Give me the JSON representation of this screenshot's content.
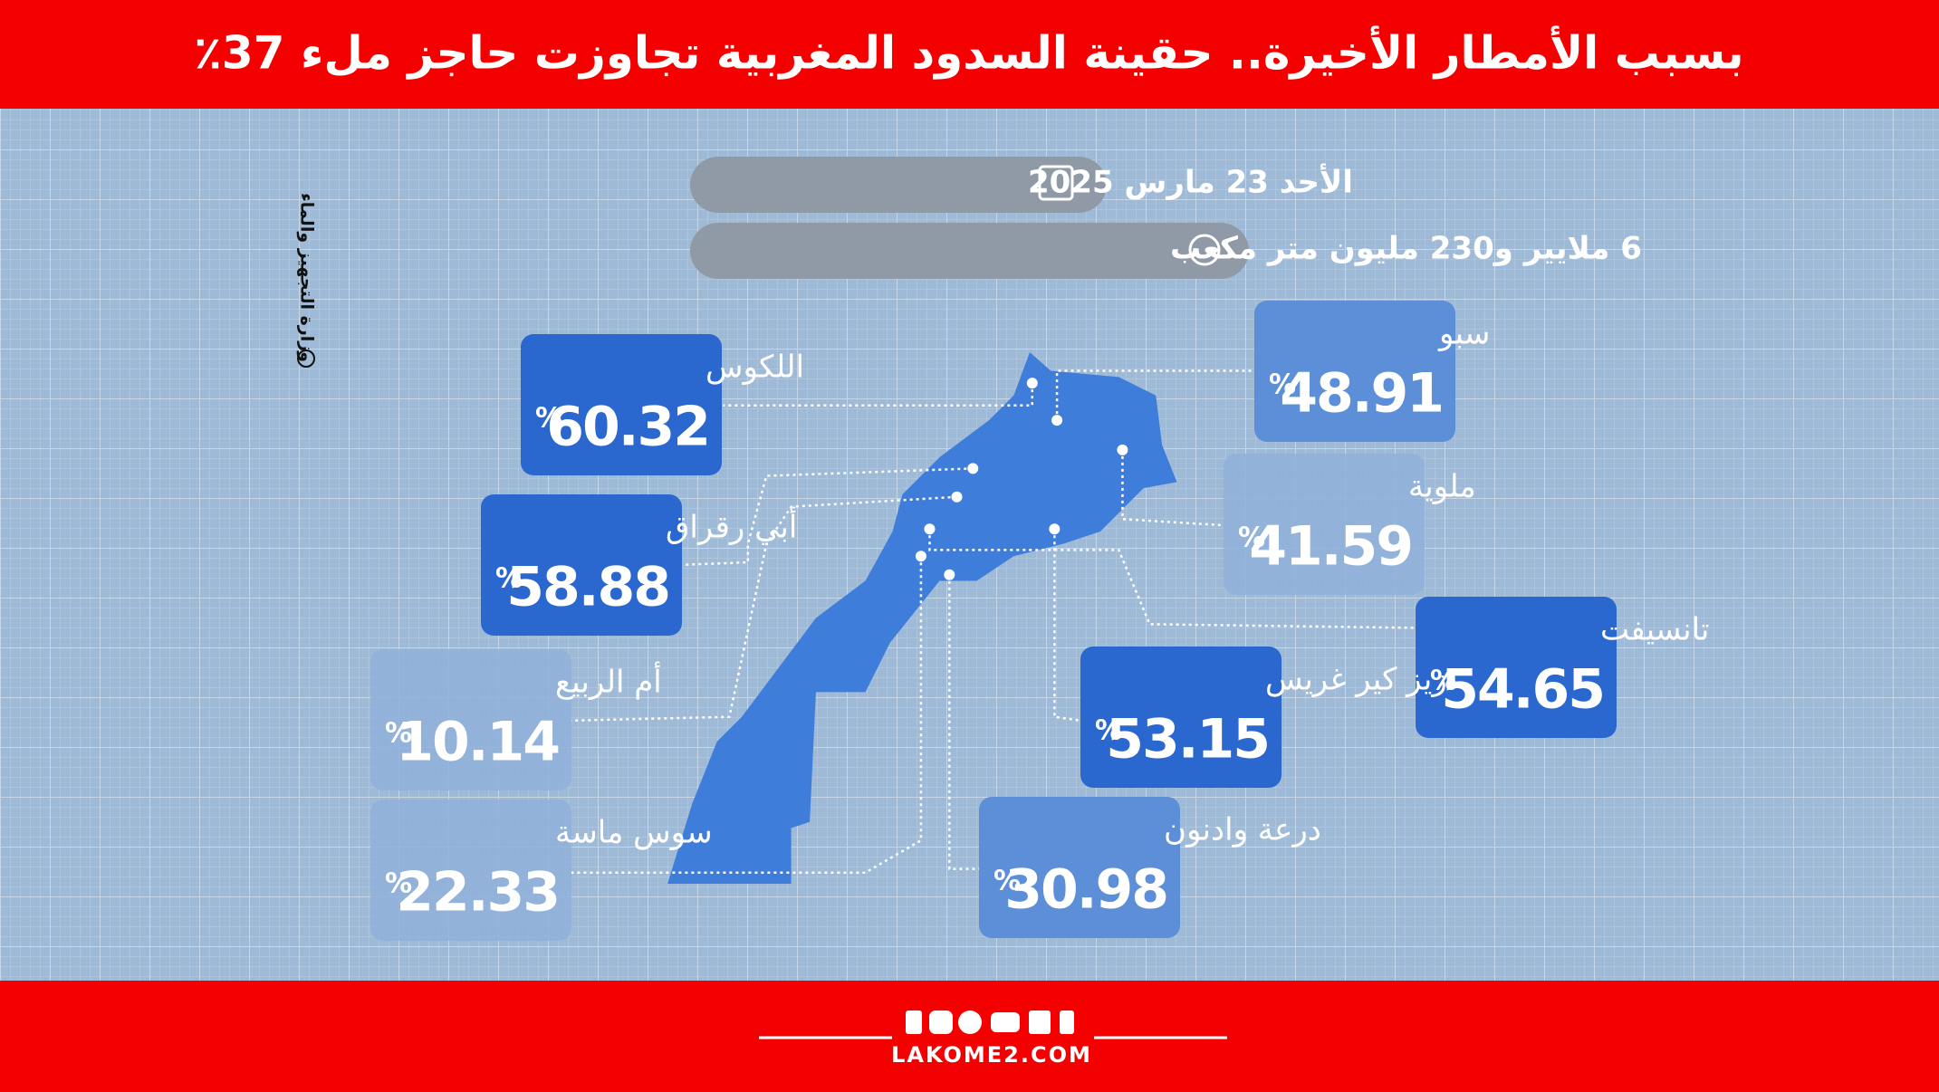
{
  "header": {
    "title": "بسبب الأمطار الأخيرة.. حقينة السدود المغربية تجاوزت حاجز ملء 37٪"
  },
  "date": "الأحد 23 مارس 2025",
  "volume": "6 ملايير و230 مليون متر مكعب",
  "source": "وزارة التجهيز والماء",
  "basins": [
    {
      "name": "سبو",
      "value": 48.91,
      "unit": "%"
    },
    {
      "name": "ملوية",
      "value": 41.59,
      "unit": "%"
    },
    {
      "name": "تانسيفت",
      "value": 54.65,
      "unit": "%"
    },
    {
      "name": "زيز كير غريس",
      "value": 53.15,
      "unit": "%"
    },
    {
      "name": "درعة وادنون",
      "value": 30.98,
      "unit": "%"
    },
    {
      "name": "سوس ماسة",
      "value": 22.33,
      "unit": "%"
    },
    {
      "name": "أم الربيع",
      "value": 10.14,
      "unit": "%"
    },
    {
      "name": "أبي رقراق",
      "value": 58.88,
      "unit": "%"
    },
    {
      "name": "اللكوس",
      "value": 60.32,
      "unit": "%"
    }
  ],
  "footer": {
    "site": "LAKOME2.COM"
  }
}
